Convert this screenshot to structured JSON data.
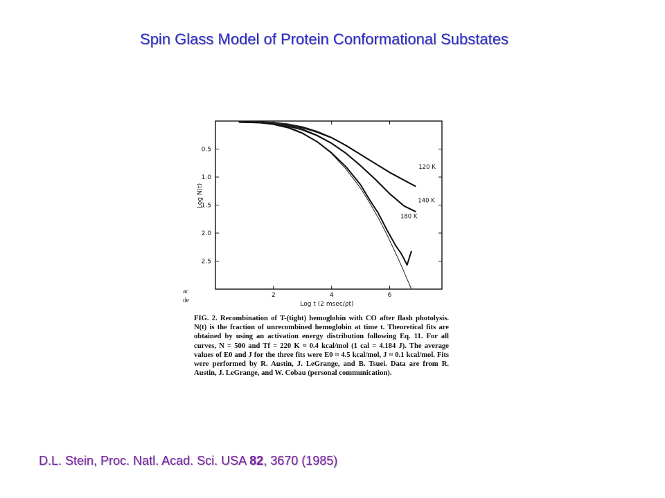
{
  "slide": {
    "title": "Spin Glass Model of Protein Conformational Substates"
  },
  "figure": {
    "label": "FIG. 2.",
    "caption": "Recombination of T-(tight) hemoglobin with CO after flash photolysis. N(t) is the fraction of unrecombined hemoglobin at time t. Theoretical fits are obtained by using an activation energy distribution following Eq. 11. For all curves, N = 500 and Tf = 220 K ≈ 0.4 kcal/mol (1 cal = 4.184 J). The average values of E0 and J for the three fits were E0 ≈ 4.5 kcal/mol, J ≈ 0.1 kcal/mol. Fits were performed by R. Austin, J. LeGrange, and B. Tsuei. Data are from R. Austin, J. LeGrange, and W. Cobau (personal communication).",
    "cutoff_text": [
      "ac",
      "de"
    ]
  },
  "chart_data": {
    "type": "line",
    "title": "",
    "xlabel": "Log t (2 msec/ρt)",
    "ylabel": "Log N(t)",
    "xlim": [
      0,
      7.8
    ],
    "ylim": [
      0,
      3.0
    ],
    "y_inverted": true,
    "xticks": [
      2,
      4,
      6
    ],
    "xtick_labels": [
      "2",
      "4",
      "6"
    ],
    "yticks": [
      0.5,
      1.0,
      1.5,
      2.0,
      2.5
    ],
    "ytick_labels": [
      "0.5",
      "1.0",
      "1.5",
      "2.0",
      "2.5"
    ],
    "grid": false,
    "legend": "none",
    "series": [
      {
        "name": "120 K",
        "x": [
          0.8,
          1.5,
          2.0,
          2.5,
          3.0,
          3.5,
          4.0,
          4.5,
          5.0,
          5.5,
          6.0,
          6.5,
          6.9
        ],
        "y": [
          0.0,
          0.01,
          0.02,
          0.05,
          0.1,
          0.18,
          0.28,
          0.42,
          0.58,
          0.74,
          0.9,
          1.04,
          1.15
        ],
        "fit": [
          0.0,
          0.01,
          0.02,
          0.05,
          0.1,
          0.18,
          0.29,
          0.43,
          0.59,
          0.75,
          0.91,
          1.05,
          1.16
        ]
      },
      {
        "name": "140 K",
        "x": [
          0.8,
          1.5,
          2.0,
          2.5,
          3.0,
          3.5,
          4.0,
          4.5,
          5.0,
          5.5,
          6.0,
          6.5,
          6.9
        ],
        "y": [
          0.0,
          0.01,
          0.03,
          0.07,
          0.14,
          0.24,
          0.38,
          0.56,
          0.78,
          1.02,
          1.28,
          1.5,
          1.6
        ],
        "fit": [
          0.0,
          0.01,
          0.03,
          0.07,
          0.14,
          0.25,
          0.39,
          0.57,
          0.79,
          1.03,
          1.29,
          1.51,
          1.61
        ]
      },
      {
        "name": "180 K",
        "x": [
          0.8,
          1.5,
          2.0,
          2.5,
          3.0,
          3.5,
          4.0,
          4.5,
          5.0,
          5.3,
          5.6,
          5.9,
          6.2,
          6.4,
          6.6,
          6.75
        ],
        "y": [
          0.0,
          0.01,
          0.04,
          0.1,
          0.2,
          0.35,
          0.55,
          0.8,
          1.12,
          1.38,
          1.62,
          1.92,
          2.2,
          2.35,
          2.55,
          2.3
        ],
        "fit": [
          0.0,
          0.01,
          0.04,
          0.1,
          0.21,
          0.37,
          0.58,
          0.86,
          1.2,
          1.45,
          1.72,
          2.02,
          2.35,
          2.58,
          2.82,
          3.0
        ]
      }
    ]
  },
  "citation": {
    "authors": "D.L. Stein, Proc. Natl. Acad. Sci. USA",
    "volume": "82",
    "pages_year": ", 3670 (1985)"
  }
}
